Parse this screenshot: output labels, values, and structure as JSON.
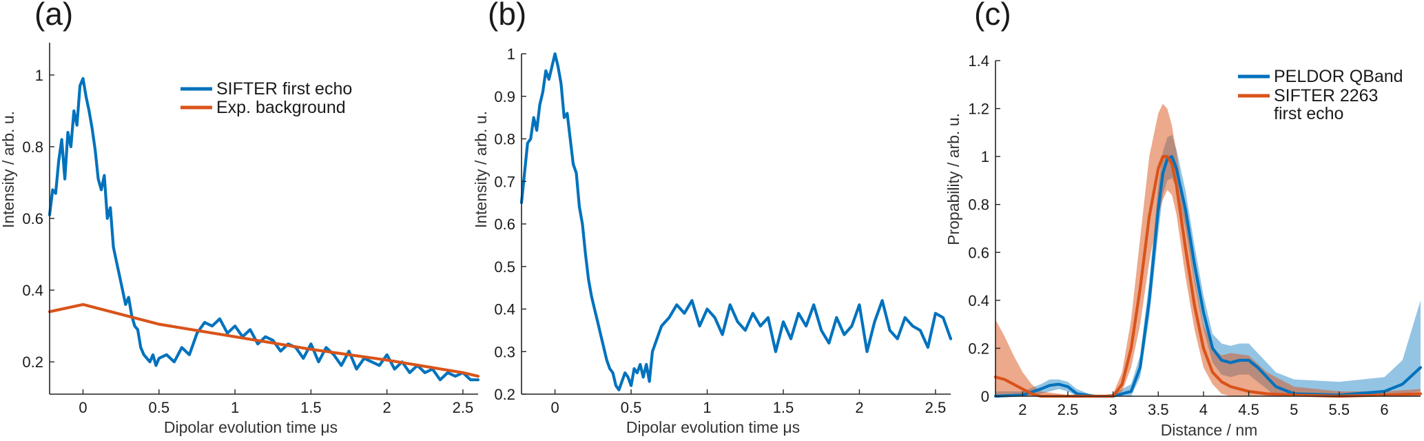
{
  "chart_data": [
    {
      "type": "line",
      "panel": "(a)",
      "xlabel": "Dipolar evolution time μs",
      "ylabel": "Intensity / arb. u.",
      "xlim": [
        -0.22,
        2.6
      ],
      "ylim": [
        0.11,
        1.09
      ],
      "xticks": [
        0,
        0.5,
        1,
        1.5,
        2,
        2.5
      ],
      "xtick_labels": [
        "0",
        "0.5",
        "1",
        "1.5",
        "2",
        "2.5"
      ],
      "yticks": [
        0.2,
        0.4,
        0.6,
        0.8,
        1
      ],
      "ytick_labels": [
        "0.2",
        "0.4",
        "0.6",
        "0.8",
        "1"
      ],
      "legend_position": "top-right",
      "series": [
        {
          "name": "SIFTER first echo",
          "color": "#0072BD",
          "x": [
            -0.22,
            -0.2,
            -0.18,
            -0.16,
            -0.14,
            -0.12,
            -0.1,
            -0.08,
            -0.06,
            -0.04,
            -0.02,
            0,
            0.02,
            0.04,
            0.06,
            0.08,
            0.1,
            0.12,
            0.14,
            0.16,
            0.18,
            0.2,
            0.22,
            0.24,
            0.26,
            0.28,
            0.3,
            0.32,
            0.34,
            0.36,
            0.38,
            0.4,
            0.42,
            0.44,
            0.46,
            0.48,
            0.5,
            0.55,
            0.6,
            0.65,
            0.7,
            0.75,
            0.8,
            0.85,
            0.9,
            0.95,
            1,
            1.05,
            1.1,
            1.15,
            1.2,
            1.25,
            1.3,
            1.35,
            1.4,
            1.45,
            1.5,
            1.55,
            1.6,
            1.65,
            1.7,
            1.75,
            1.8,
            1.85,
            1.9,
            1.95,
            2,
            2.05,
            2.1,
            2.15,
            2.2,
            2.25,
            2.3,
            2.35,
            2.4,
            2.45,
            2.5,
            2.55,
            2.6
          ],
          "y": [
            0.61,
            0.68,
            0.67,
            0.76,
            0.82,
            0.71,
            0.84,
            0.8,
            0.9,
            0.86,
            0.97,
            0.99,
            0.94,
            0.9,
            0.85,
            0.79,
            0.71,
            0.68,
            0.72,
            0.6,
            0.63,
            0.52,
            0.48,
            0.44,
            0.4,
            0.36,
            0.38,
            0.33,
            0.3,
            0.29,
            0.24,
            0.22,
            0.21,
            0.2,
            0.22,
            0.19,
            0.21,
            0.22,
            0.2,
            0.24,
            0.22,
            0.28,
            0.31,
            0.3,
            0.32,
            0.28,
            0.3,
            0.27,
            0.29,
            0.25,
            0.27,
            0.26,
            0.23,
            0.25,
            0.24,
            0.21,
            0.25,
            0.2,
            0.24,
            0.22,
            0.19,
            0.23,
            0.18,
            0.21,
            0.2,
            0.19,
            0.22,
            0.18,
            0.2,
            0.17,
            0.19,
            0.17,
            0.18,
            0.15,
            0.17,
            0.16,
            0.17,
            0.15,
            0.15
          ]
        },
        {
          "name": "Exp. background",
          "color": "#D95319",
          "x": [
            -0.22,
            0,
            0.5,
            1,
            1.5,
            2,
            2.5,
            2.6
          ],
          "y": [
            0.34,
            0.36,
            0.305,
            0.27,
            0.235,
            0.205,
            0.17,
            0.16
          ]
        }
      ]
    },
    {
      "type": "line",
      "panel": "(b)",
      "xlabel": "Dipolar evolution time μs",
      "ylabel": "Intensity / arb. u.",
      "xlim": [
        -0.22,
        2.6
      ],
      "ylim": [
        0.2,
        1.0
      ],
      "xticks": [
        0,
        0.5,
        1,
        1.5,
        2,
        2.5
      ],
      "xtick_labels": [
        "0",
        "0.5",
        "1",
        "1.5",
        "2",
        "2.5"
      ],
      "yticks": [
        0.2,
        0.3,
        0.4,
        0.5,
        0.6,
        0.7,
        0.8,
        0.9,
        1
      ],
      "ytick_labels": [
        "0.2",
        "0.3",
        "0.4",
        "0.5",
        "0.6",
        "0.7",
        "0.8",
        "0.9",
        "1"
      ],
      "series": [
        {
          "color": "#0072BD",
          "x": [
            -0.22,
            -0.2,
            -0.18,
            -0.16,
            -0.14,
            -0.12,
            -0.1,
            -0.08,
            -0.06,
            -0.04,
            -0.02,
            0,
            0.02,
            0.04,
            0.06,
            0.08,
            0.1,
            0.12,
            0.14,
            0.16,
            0.18,
            0.2,
            0.22,
            0.24,
            0.26,
            0.28,
            0.3,
            0.32,
            0.34,
            0.36,
            0.38,
            0.4,
            0.42,
            0.44,
            0.46,
            0.48,
            0.5,
            0.52,
            0.54,
            0.56,
            0.58,
            0.6,
            0.62,
            0.64,
            0.66,
            0.7,
            0.75,
            0.8,
            0.85,
            0.9,
            0.95,
            1,
            1.05,
            1.1,
            1.15,
            1.2,
            1.25,
            1.3,
            1.35,
            1.4,
            1.45,
            1.5,
            1.55,
            1.6,
            1.65,
            1.7,
            1.75,
            1.8,
            1.85,
            1.9,
            1.95,
            2,
            2.05,
            2.1,
            2.15,
            2.2,
            2.25,
            2.3,
            2.35,
            2.4,
            2.45,
            2.5,
            2.55,
            2.6
          ],
          "y": [
            0.65,
            0.72,
            0.79,
            0.8,
            0.85,
            0.82,
            0.88,
            0.91,
            0.96,
            0.94,
            0.97,
            1.0,
            0.97,
            0.93,
            0.85,
            0.86,
            0.8,
            0.74,
            0.72,
            0.64,
            0.6,
            0.53,
            0.47,
            0.43,
            0.4,
            0.37,
            0.34,
            0.31,
            0.28,
            0.26,
            0.25,
            0.22,
            0.21,
            0.23,
            0.25,
            0.24,
            0.22,
            0.26,
            0.25,
            0.27,
            0.24,
            0.27,
            0.23,
            0.3,
            0.32,
            0.36,
            0.38,
            0.41,
            0.39,
            0.42,
            0.36,
            0.4,
            0.38,
            0.34,
            0.41,
            0.37,
            0.35,
            0.39,
            0.36,
            0.38,
            0.3,
            0.37,
            0.33,
            0.39,
            0.36,
            0.41,
            0.35,
            0.32,
            0.38,
            0.34,
            0.36,
            0.41,
            0.3,
            0.37,
            0.42,
            0.35,
            0.33,
            0.38,
            0.36,
            0.35,
            0.31,
            0.39,
            0.38,
            0.33
          ]
        }
      ]
    },
    {
      "type": "line",
      "panel": "(c)",
      "xlabel": "Distance / nm",
      "ylabel": "Propability / arb. u.",
      "xlim": [
        1.7,
        6.4
      ],
      "ylim": [
        0,
        1.4
      ],
      "xticks": [
        2,
        2.5,
        3,
        3.5,
        4,
        4.5,
        5,
        5.5,
        6
      ],
      "xtick_labels": [
        "2",
        "2.5",
        "3",
        "3.5",
        "4",
        "4.5",
        "5",
        "5.5",
        "6"
      ],
      "yticks": [
        0,
        0.2,
        0.4,
        0.6,
        0.8,
        1,
        1.2,
        1.4
      ],
      "ytick_labels": [
        "0",
        "0.2",
        "0.4",
        "0.6",
        "0.8",
        "1",
        "1.2",
        "1.4"
      ],
      "legend_position": "top-right",
      "series": [
        {
          "name": "PELDOR QBand",
          "color": "#0072BD",
          "x": [
            1.7,
            2.0,
            2.2,
            2.3,
            2.4,
            2.5,
            2.6,
            2.8,
            3.0,
            3.2,
            3.3,
            3.4,
            3.5,
            3.55,
            3.6,
            3.65,
            3.7,
            3.8,
            3.9,
            4.0,
            4.1,
            4.2,
            4.3,
            4.4,
            4.5,
            4.6,
            4.8,
            5.0,
            5.5,
            6.0,
            6.2,
            6.4
          ],
          "y": [
            0.0,
            0.005,
            0.03,
            0.045,
            0.05,
            0.04,
            0.01,
            0.0,
            0.0,
            0.02,
            0.12,
            0.4,
            0.78,
            0.93,
            0.99,
            1.0,
            0.95,
            0.78,
            0.55,
            0.35,
            0.2,
            0.15,
            0.14,
            0.15,
            0.15,
            0.12,
            0.04,
            0.01,
            0.005,
            0.02,
            0.05,
            0.12
          ],
          "band_lower": [
            0.0,
            0.0,
            0.01,
            0.02,
            0.03,
            0.02,
            0.0,
            0.0,
            0.0,
            0.0,
            0.08,
            0.33,
            0.68,
            0.84,
            0.9,
            0.91,
            0.87,
            0.7,
            0.47,
            0.28,
            0.14,
            0.09,
            0.08,
            0.09,
            0.09,
            0.06,
            0.0,
            0.0,
            0.0,
            0.0,
            0.01,
            0.02
          ],
          "band_upper": [
            0.02,
            0.02,
            0.05,
            0.07,
            0.07,
            0.06,
            0.03,
            0.0,
            0.01,
            0.05,
            0.17,
            0.48,
            0.88,
            1.02,
            1.08,
            1.09,
            1.03,
            0.86,
            0.63,
            0.42,
            0.26,
            0.22,
            0.21,
            0.22,
            0.22,
            0.18,
            0.1,
            0.07,
            0.06,
            0.08,
            0.15,
            0.4
          ]
        },
        {
          "name": "SIFTER 2263 first echo",
          "color": "#D95319",
          "x": [
            1.7,
            1.8,
            1.9,
            2.0,
            2.1,
            2.2,
            2.4,
            2.6,
            2.8,
            3.0,
            3.1,
            3.2,
            3.3,
            3.4,
            3.5,
            3.55,
            3.6,
            3.65,
            3.7,
            3.8,
            3.9,
            4.0,
            4.1,
            4.2,
            4.3,
            4.5,
            4.7,
            5.0,
            5.5,
            6.0,
            6.4
          ],
          "y": [
            0.08,
            0.07,
            0.05,
            0.03,
            0.01,
            0.0,
            0.0,
            0.0,
            0.0,
            0.0,
            0.05,
            0.2,
            0.45,
            0.75,
            0.95,
            1.0,
            1.0,
            0.97,
            0.88,
            0.62,
            0.38,
            0.2,
            0.1,
            0.06,
            0.04,
            0.02,
            0.01,
            0.005,
            0.0,
            0.005,
            0.01
          ],
          "band_lower": [
            0.0,
            0.0,
            0.0,
            0.0,
            0.0,
            0.0,
            0.0,
            0.0,
            0.0,
            0.0,
            0.02,
            0.12,
            0.3,
            0.56,
            0.76,
            0.82,
            0.86,
            0.84,
            0.76,
            0.5,
            0.28,
            0.12,
            0.05,
            0.01,
            0.0,
            0.0,
            0.0,
            0.0,
            0.0,
            0.0,
            0.0
          ],
          "band_upper": [
            0.32,
            0.25,
            0.17,
            0.1,
            0.05,
            0.02,
            0.01,
            0.0,
            0.0,
            0.01,
            0.1,
            0.32,
            0.66,
            1.0,
            1.18,
            1.22,
            1.2,
            1.13,
            1.02,
            0.75,
            0.5,
            0.3,
            0.2,
            0.17,
            0.18,
            0.17,
            0.1,
            0.04,
            0.02,
            0.02,
            0.03
          ]
        }
      ]
    }
  ]
}
